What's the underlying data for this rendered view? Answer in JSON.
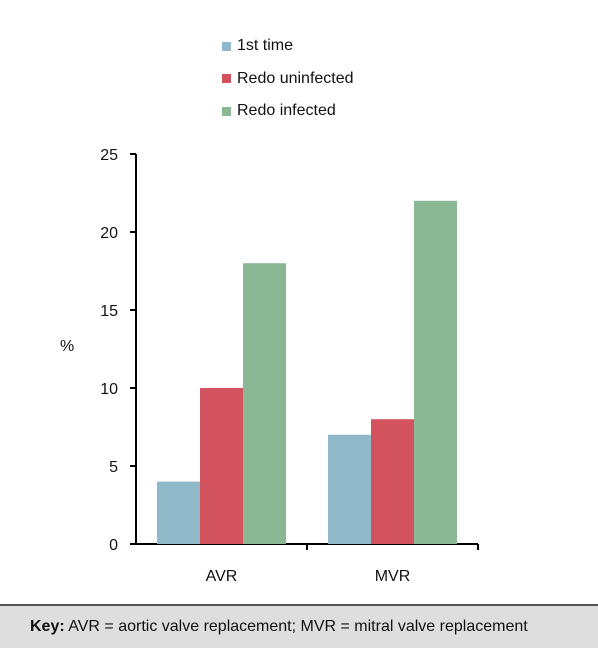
{
  "chart_data": {
    "type": "bar",
    "title": "",
    "xlabel": "",
    "ylabel": "%",
    "ylim": [
      0,
      25
    ],
    "yticks": [
      "0",
      "5",
      "10",
      "15",
      "20",
      "25"
    ],
    "categories": [
      "AVR",
      "MVR"
    ],
    "series": [
      {
        "name": "1st time",
        "color": "#8fb8c8",
        "values": [
          4,
          7
        ]
      },
      {
        "name": "Redo uninfected",
        "color": "#d2525e",
        "values": [
          10,
          8
        ]
      },
      {
        "name": "Redo infected",
        "color": "#8ab895",
        "values": [
          18,
          22
        ]
      }
    ],
    "legend_position": "top",
    "grid": false
  },
  "key": {
    "label": "Key:",
    "text": " AVR = aortic valve replacement; MVR = mitral valve replacement"
  }
}
